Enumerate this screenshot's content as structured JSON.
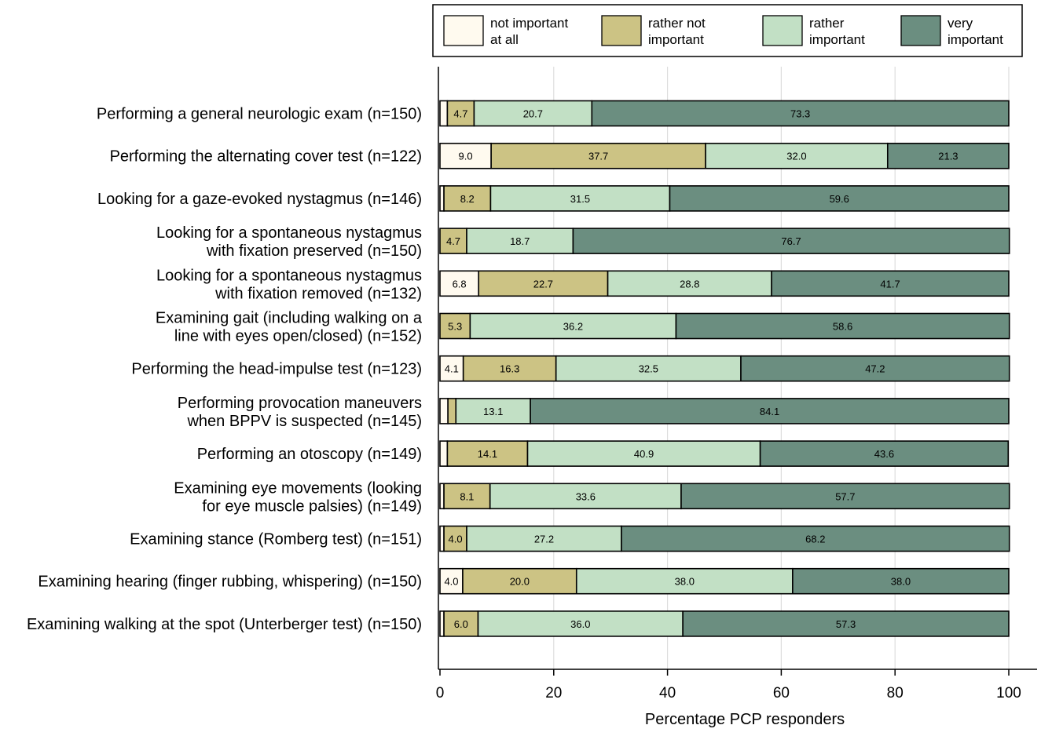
{
  "chart_data": {
    "type": "bar",
    "orientation": "horizontal",
    "stacked": true,
    "xlabel": "Percentage PCP responders",
    "xlim": [
      0,
      100
    ],
    "xticks": [
      0,
      20,
      40,
      60,
      80,
      100
    ],
    "grid": "vertical",
    "legend_position": "top",
    "legend": [
      {
        "name": "not important at all",
        "lines": [
          "not important",
          "at all"
        ],
        "color": "#fffaef"
      },
      {
        "name": "rather not important",
        "lines": [
          "rather not",
          "important"
        ],
        "color": "#ccc384"
      },
      {
        "name": "rather important",
        "lines": [
          "rather",
          "important"
        ],
        "color": "#c2e0c5"
      },
      {
        "name": "very important",
        "lines": [
          "very",
          "important"
        ],
        "color": "#6b8e80"
      }
    ],
    "categories": [
      {
        "lines": [
          "Performing a general neurologic exam (n=150)"
        ]
      },
      {
        "lines": [
          "Performing the alternating cover test (n=122)"
        ]
      },
      {
        "lines": [
          "Looking for a gaze-evoked nystagmus (n=146)"
        ]
      },
      {
        "lines": [
          "Looking for a spontaneous nystagmus ",
          "with fixation preserved (n=150)"
        ]
      },
      {
        "lines": [
          "Looking for a spontaneous nystagmus",
          "with fixation removed (n=132)"
        ]
      },
      {
        "lines": [
          "Examining gait (including walking on a",
          "line with eyes open/closed) (n=152)"
        ]
      },
      {
        "lines": [
          "Performing the head-impulse test (n=123)"
        ]
      },
      {
        "lines": [
          "Performing provocation maneuvers",
          "when BPPV is suspected (n=145)"
        ]
      },
      {
        "lines": [
          "Performing an otoscopy (n=149)"
        ]
      },
      {
        "lines": [
          "Examining eye movements (looking",
          "for eye muscle palsies) (n=149)"
        ]
      },
      {
        "lines": [
          "Examining stance (Romberg test) (n=151)"
        ]
      },
      {
        "lines": [
          "Examining hearing (finger rubbing, whispering) (n=150)"
        ]
      },
      {
        "lines": [
          "Examining walking at the spot (Unterberger test) (n=150)"
        ]
      }
    ],
    "series": [
      {
        "name": "not important at all",
        "values": [
          1.3,
          9.0,
          0.7,
          0.0,
          6.8,
          0.0,
          4.1,
          1.4,
          1.3,
          0.7,
          0.7,
          4.0,
          0.7
        ],
        "labels": [
          "",
          "9.0",
          "",
          "",
          "6.8",
          "",
          "4.1",
          "",
          "",
          "",
          "",
          "4.0",
          ""
        ]
      },
      {
        "name": "rather not important",
        "values": [
          4.7,
          37.7,
          8.2,
          4.7,
          22.7,
          5.3,
          16.3,
          1.4,
          14.1,
          8.1,
          4.0,
          20.0,
          6.0
        ],
        "labels": [
          "4.7",
          "37.7",
          "8.2",
          "4.7",
          "22.7",
          "5.3",
          "16.3",
          "",
          "14.1",
          "8.1",
          "4.0",
          "20.0",
          "6.0"
        ]
      },
      {
        "name": "rather important",
        "values": [
          20.7,
          32.0,
          31.5,
          18.7,
          28.8,
          36.2,
          32.5,
          13.1,
          40.9,
          33.6,
          27.2,
          38.0,
          36.0
        ],
        "labels": [
          "20.7",
          "32.0",
          "31.5",
          "18.7",
          "28.8",
          "36.2",
          "32.5",
          "13.1",
          "40.9",
          "33.6",
          "27.2",
          "38.0",
          "36.0"
        ]
      },
      {
        "name": "very important",
        "values": [
          73.3,
          21.3,
          59.6,
          76.7,
          41.7,
          58.6,
          47.2,
          84.1,
          43.6,
          57.7,
          68.2,
          38.0,
          57.3
        ],
        "labels": [
          "73.3",
          "21.3",
          "59.6",
          "76.7",
          "41.7",
          "58.6",
          "47.2",
          "84.1",
          "43.6",
          "57.7",
          "68.2",
          "38.0",
          "57.3"
        ]
      }
    ]
  }
}
